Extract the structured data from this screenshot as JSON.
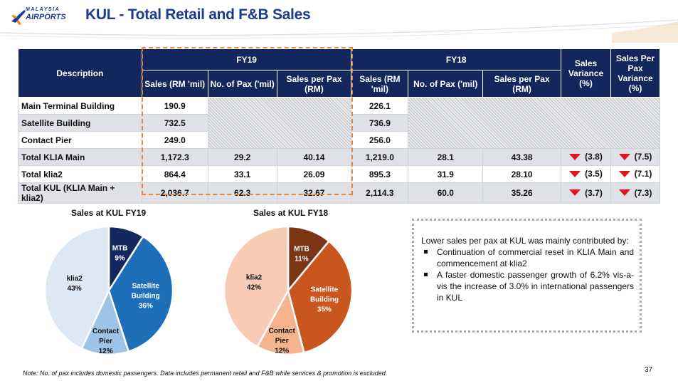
{
  "header": {
    "logo_line1": "MALAYSIA",
    "logo_line2": "AIRPORTS",
    "title": "KUL - Total Retail and F&B Sales"
  },
  "table": {
    "col_description": "Description",
    "group_fy19": "FY19",
    "group_fy18": "FY18",
    "col_sales_variance": "Sales Variance (%)",
    "col_spp_variance": "Sales Per Pax Variance (%)",
    "sub_sales": "Sales (RM 'mil)",
    "sub_pax": "No. of Pax ('mil)",
    "sub_spp": "Sales per Pax (RM)",
    "rows": [
      {
        "desc": "Main Terminal Building",
        "fy19_sales": "190.9",
        "fy19_pax": "",
        "fy19_spp": "",
        "fy18_sales": "226.1",
        "fy18_pax": "",
        "fy18_spp": "",
        "sales_var": "",
        "spp_var": ""
      },
      {
        "desc": "Satellite Building",
        "fy19_sales": "732.5",
        "fy19_pax": "",
        "fy19_spp": "",
        "fy18_sales": "736.9",
        "fy18_pax": "",
        "fy18_spp": "",
        "sales_var": "",
        "spp_var": ""
      },
      {
        "desc": "Contact Pier",
        "fy19_sales": "249.0",
        "fy19_pax": "",
        "fy19_spp": "",
        "fy18_sales": "256.0",
        "fy18_pax": "",
        "fy18_spp": "",
        "sales_var": "",
        "spp_var": ""
      },
      {
        "desc": "Total KLIA Main",
        "fy19_sales": "1,172.3",
        "fy19_pax": "29.2",
        "fy19_spp": "40.14",
        "fy18_sales": "1,219.0",
        "fy18_pax": "28.1",
        "fy18_spp": "43.38",
        "sales_var": "(3.8)",
        "spp_var": "(7.5)"
      },
      {
        "desc": "Total klia2",
        "fy19_sales": "864.4",
        "fy19_pax": "33.1",
        "fy19_spp": "26.09",
        "fy18_sales": "895.3",
        "fy18_pax": "31.9",
        "fy18_spp": "28.10",
        "sales_var": "(3.5)",
        "spp_var": "(7.1)"
      },
      {
        "desc": "Total KUL (KLIA Main + klia2)",
        "fy19_sales": "2,036.7",
        "fy19_pax": "62.3",
        "fy19_spp": "32.67",
        "fy18_sales": "2,114.3",
        "fy18_pax": "60.0",
        "fy18_spp": "35.26",
        "sales_var": "(3.7)",
        "spp_var": "(7.3)"
      }
    ]
  },
  "chart_data": [
    {
      "type": "pie",
      "title": "Sales at KUL FY19",
      "categories": [
        "MTB",
        "Satellite Building",
        "Contact Pier",
        "klia2"
      ],
      "values": [
        9,
        36,
        12,
        43
      ],
      "labels": [
        "9%",
        "36%",
        "12%",
        "43%"
      ],
      "colors": [
        "#13275e",
        "#1f6fb8",
        "#9dc3e6",
        "#dce8f4"
      ]
    },
    {
      "type": "pie",
      "title": "Sales at KUL FY18",
      "categories": [
        "MTB",
        "Satellite Building",
        "Contact Pier",
        "klia2"
      ],
      "values": [
        11,
        35,
        12,
        42
      ],
      "labels": [
        "11%",
        "35%",
        "12%",
        "42%"
      ],
      "colors": [
        "#7b3514",
        "#c9561f",
        "#f5b48e",
        "#f8ccb4"
      ]
    }
  ],
  "commentary": {
    "intro": "Lower sales per pax at KUL was mainly contributed by:",
    "bullets": [
      "Continuation of commercial reset in KLIA Main and commencement at klia2",
      "A faster domestic passenger growth of 6.2% vis-a-vis the increase of 3.0% in international passengers in KUL"
    ]
  },
  "footer": {
    "note": "Note: No. of pax includes domestic passengers. Data includes permanent retail and F&B while services & promotion is excluded.",
    "page_number": "37"
  },
  "colors": {
    "header_navy": "#13275e",
    "title_blue": "#1d3c8f",
    "highlight_orange": "#e8853b",
    "down_red": "#e0141e"
  }
}
